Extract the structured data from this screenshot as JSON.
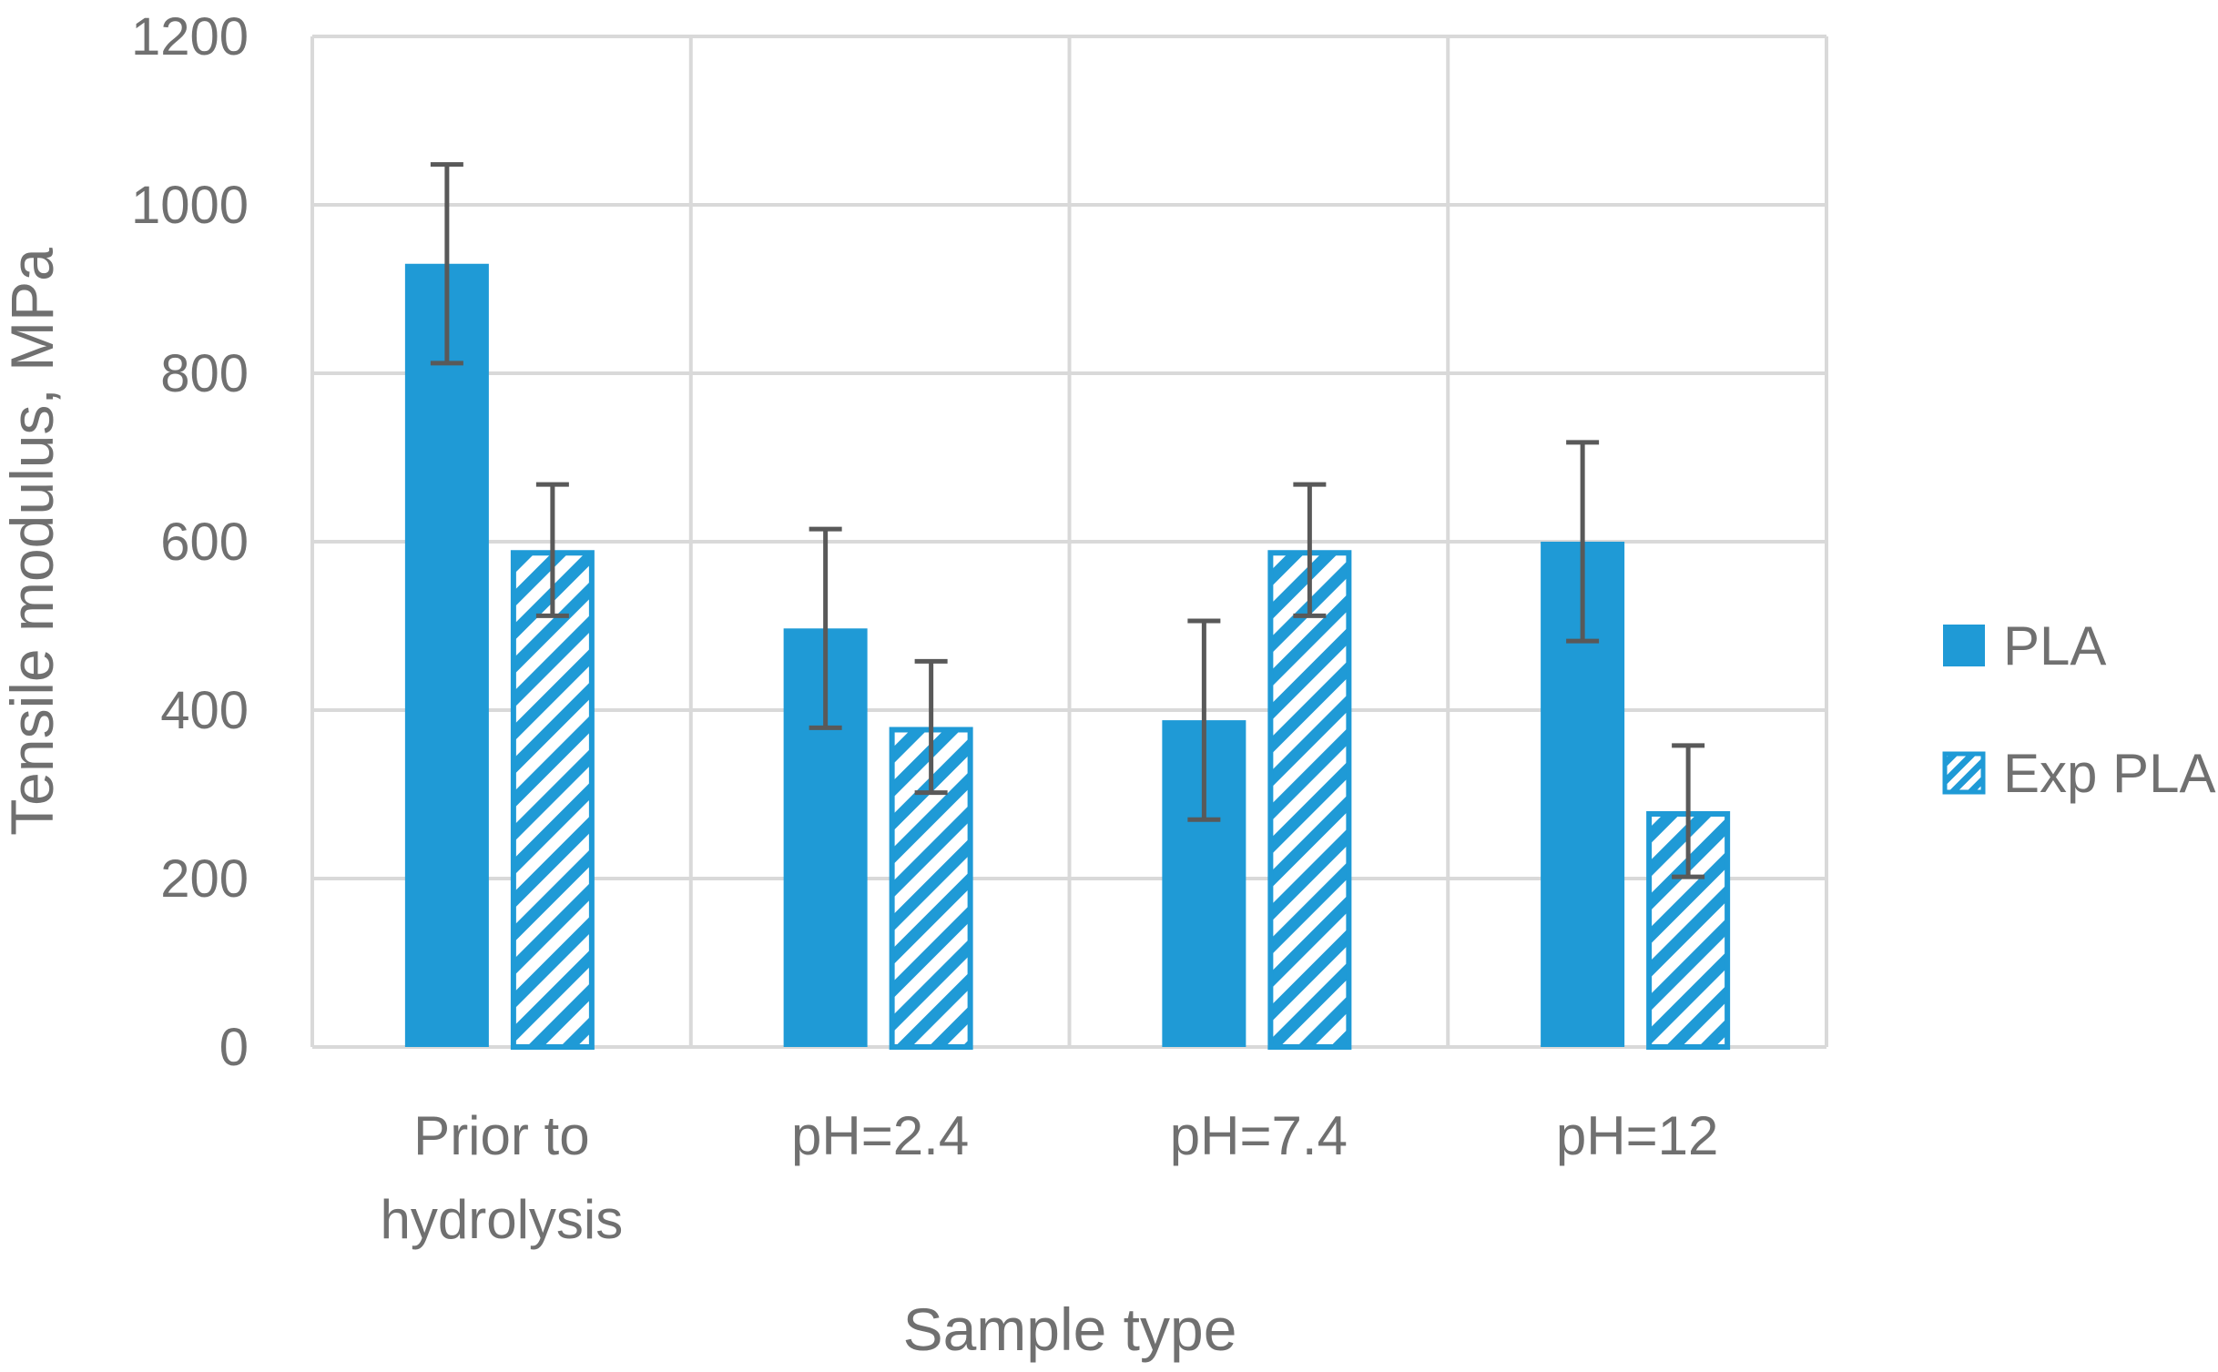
{
  "chart_data": {
    "type": "bar",
    "title": "",
    "xlabel": "Sample type",
    "ylabel": "Tensile modulus, MPa",
    "ylim": [
      0,
      1200
    ],
    "yticks": [
      0,
      200,
      400,
      600,
      800,
      1000,
      1200
    ],
    "categories": [
      [
        "Prior to",
        "hydrolysis"
      ],
      [
        "pH=2.4"
      ],
      [
        "pH=7.4"
      ],
      [
        "pH=12"
      ]
    ],
    "series": [
      {
        "name": "PLA",
        "fill": "solid",
        "color": "#1f9ad6",
        "values": [
          930,
          497,
          388,
          600
        ],
        "errors": [
          118,
          118,
          118,
          118
        ]
      },
      {
        "name": "Exp PLA",
        "fill": "hatched",
        "color": "#1f9ad6",
        "values": [
          590,
          380,
          590,
          280
        ],
        "errors": [
          78,
          78,
          78,
          78
        ]
      }
    ],
    "grid": true,
    "legend": "right"
  }
}
